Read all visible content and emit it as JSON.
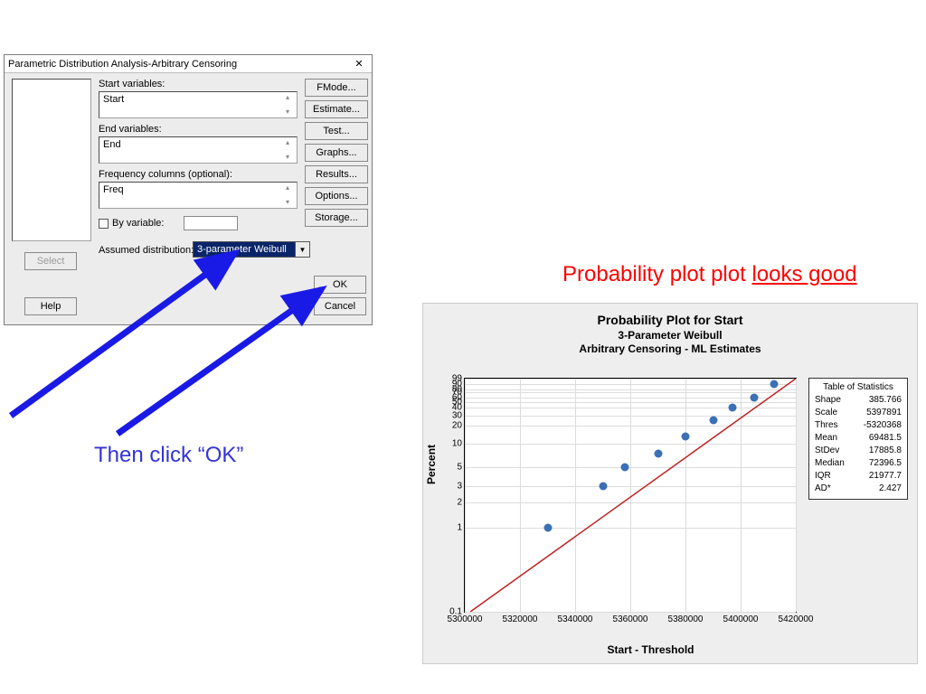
{
  "dialog": {
    "title": "Parametric Distribution Analysis-Arbitrary Censoring",
    "labels": {
      "start_vars": "Start variables:",
      "end_vars": "End variables:",
      "freq_cols": "Frequency columns (optional):",
      "by_var": "By variable:",
      "assumed_dist": "Assumed distribution:"
    },
    "fields": {
      "start": "Start",
      "end": "End",
      "freq": "Freq",
      "dist_selected": "3-parameter Weibull"
    },
    "buttons": {
      "fmode": "FMode...",
      "estimate": "Estimate...",
      "test": "Test...",
      "graphs": "Graphs...",
      "results": "Results...",
      "options": "Options...",
      "storage": "Storage...",
      "select": "Select",
      "help": "Help",
      "ok": "OK",
      "cancel": "Cancel"
    }
  },
  "annotations": {
    "click_ok": "Then click “OK”",
    "looks_good_pre": "Probability plot plot ",
    "looks_good_ul": "looks good",
    "arrow_color": "#1a1ae6"
  },
  "chart": {
    "type": "scatter",
    "title1": "Probability Plot for Start",
    "title2": "3-Parameter Weibull",
    "title3": "Arbitrary Censoring - ML Estimates",
    "ylabel": "Percent",
    "xlabel": "Start - Threshold",
    "background_color": "#eeeeee",
    "plot_bg": "#ffffff",
    "grid_color": "#dcdcdc",
    "line_color": "#c02020",
    "point_color": "#3b6fb6",
    "xticks": [
      5300000,
      5320000,
      5340000,
      5360000,
      5380000,
      5400000,
      5420000
    ],
    "yticks_primary": [
      0.1,
      1,
      2,
      3,
      5,
      10,
      20,
      30,
      40,
      50,
      60,
      70,
      80,
      90,
      99
    ],
    "yfrac": {
      "0.1": 0.0,
      "1": 0.36,
      "2": 0.47,
      "3": 0.54,
      "5": 0.62,
      "10": 0.72,
      "20": 0.8,
      "30": 0.84,
      "40": 0.875,
      "50": 0.9,
      "60": 0.92,
      "70": 0.94,
      "80": 0.955,
      "90": 0.975,
      "99": 1.0
    },
    "points": [
      {
        "x": 5330000,
        "y": 1
      },
      {
        "x": 5350000,
        "y": 3
      },
      {
        "x": 5358000,
        "y": 5
      },
      {
        "x": 5370000,
        "y": 8
      },
      {
        "x": 5380000,
        "y": 14
      },
      {
        "x": 5390000,
        "y": 25
      },
      {
        "x": 5397000,
        "y": 40
      },
      {
        "x": 5405000,
        "y": 60
      },
      {
        "x": 5412000,
        "y": 90
      }
    ],
    "fit_line": {
      "x1": 5302000,
      "y1": 0.1,
      "x2": 5420000,
      "y2": 99
    },
    "stats": {
      "header": "Table of Statistics",
      "rows": [
        [
          "Shape",
          "385.766"
        ],
        [
          "Scale",
          "5397891"
        ],
        [
          "Thres",
          "-5320368"
        ],
        [
          "Mean",
          "69481.5"
        ],
        [
          "StDev",
          "17885.8"
        ],
        [
          "Median",
          "72396.5"
        ],
        [
          "IQR",
          "21977.7"
        ],
        [
          "AD*",
          "2.427"
        ]
      ]
    }
  }
}
